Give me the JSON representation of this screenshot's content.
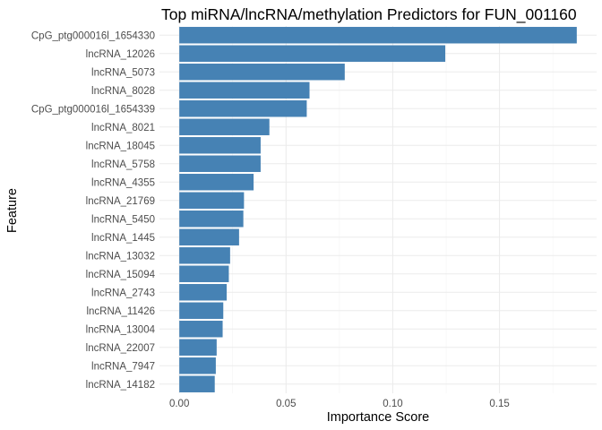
{
  "chart_data": {
    "type": "bar",
    "orientation": "horizontal",
    "title": "Top miRNA/lncRNA/methylation Predictors for FUN_001160",
    "xlabel": "Importance Score",
    "ylabel": "Feature",
    "xlim": [
      -0.0093,
      0.1955
    ],
    "xticks": [
      0.0,
      0.05,
      0.1,
      0.15
    ],
    "xtick_labels": [
      "0.00",
      "0.05",
      "0.10",
      "0.15"
    ],
    "categories": [
      "CpG_ptg000016l_1654330",
      "lncRNA_12026",
      "lncRNA_5073",
      "lncRNA_8028",
      "CpG_ptg000016l_1654339",
      "lncRNA_8021",
      "lncRNA_18045",
      "lncRNA_5758",
      "lncRNA_4355",
      "lncRNA_21769",
      "lncRNA_5450",
      "lncRNA_1445",
      "lncRNA_13032",
      "lncRNA_15094",
      "lncRNA_2743",
      "lncRNA_11426",
      "lncRNA_13004",
      "lncRNA_22007",
      "lncRNA_7947",
      "lncRNA_14182"
    ],
    "values": [
      0.1862,
      0.1246,
      0.0775,
      0.061,
      0.0597,
      0.0422,
      0.0381,
      0.0381,
      0.0348,
      0.0303,
      0.03,
      0.028,
      0.0238,
      0.0232,
      0.0222,
      0.0206,
      0.0203,
      0.0175,
      0.0171,
      0.0166
    ],
    "bar_color": "#4682B4",
    "grid": true,
    "legend": "none"
  }
}
